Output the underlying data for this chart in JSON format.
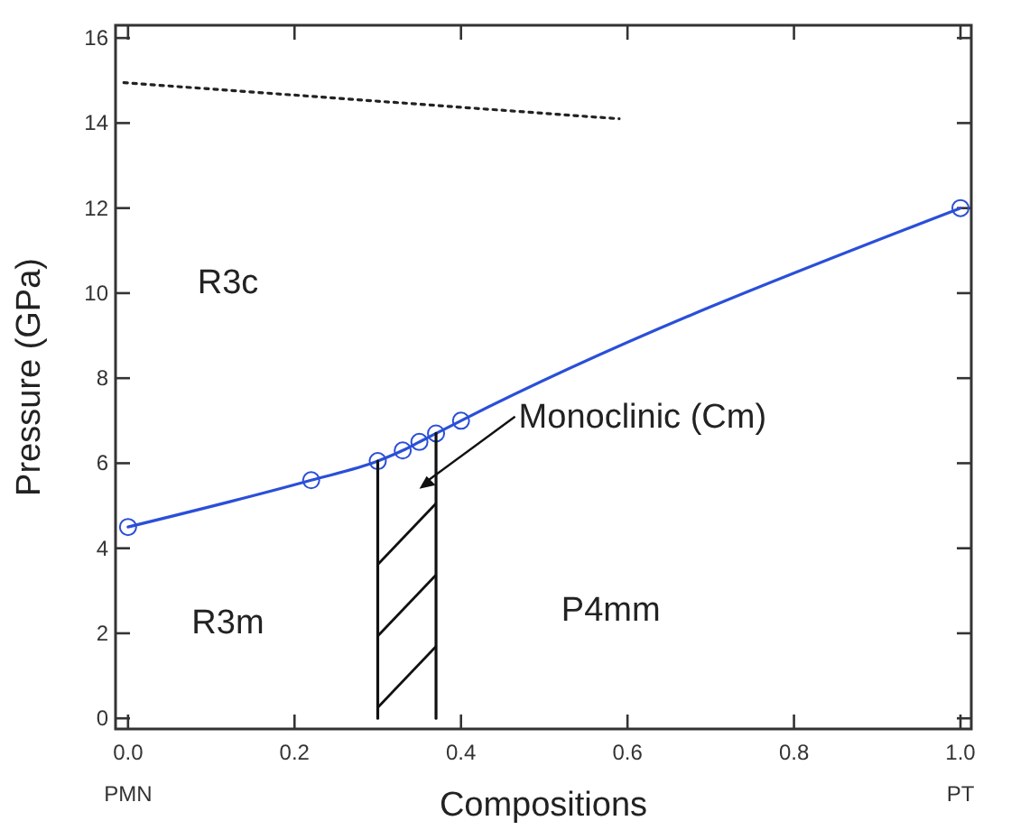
{
  "chart_data": {
    "type": "line",
    "xlabel": "Compositions",
    "ylabel": "Pressure (GPa)",
    "xlim": [
      -0.015,
      1.013
    ],
    "ylim": [
      -0.25,
      16.3
    ],
    "xticks": [
      {
        "value": 0,
        "label": "0.0"
      },
      0.2,
      0.4,
      0.6,
      0.8,
      {
        "value": 1,
        "label": "1.0"
      }
    ],
    "yticks": [
      0,
      2,
      4,
      6,
      8,
      10,
      12,
      14,
      16
    ],
    "grid": false,
    "series": [
      {
        "color": "#2a4fd8",
        "marker": "circle",
        "line_style": "solid",
        "x": [
          0,
          0.22,
          0.3,
          0.33,
          0.35,
          0.37,
          0.4,
          1.0
        ],
        "values": [
          4.5,
          5.6,
          6.05,
          6.3,
          6.5,
          6.7,
          7.0,
          12.0
        ]
      },
      {
        "color": "#222222",
        "marker": "none",
        "line_style": "dotted",
        "x": [
          -0.005,
          0.59
        ],
        "values": [
          14.95,
          14.1
        ]
      },
      {
        "color": "#111111",
        "marker": "none",
        "line_style": "solid",
        "x": [
          0.3,
          0.3
        ],
        "values": [
          0,
          6.05
        ]
      },
      {
        "color": "#111111",
        "marker": "none",
        "line_style": "solid",
        "x": [
          0.37,
          0.37
        ],
        "values": [
          0,
          6.7
        ]
      }
    ],
    "annotations": [
      "PMN",
      "PT",
      "R3c",
      "R3m",
      "P4mm",
      "Monoclinic (Cm)"
    ]
  }
}
